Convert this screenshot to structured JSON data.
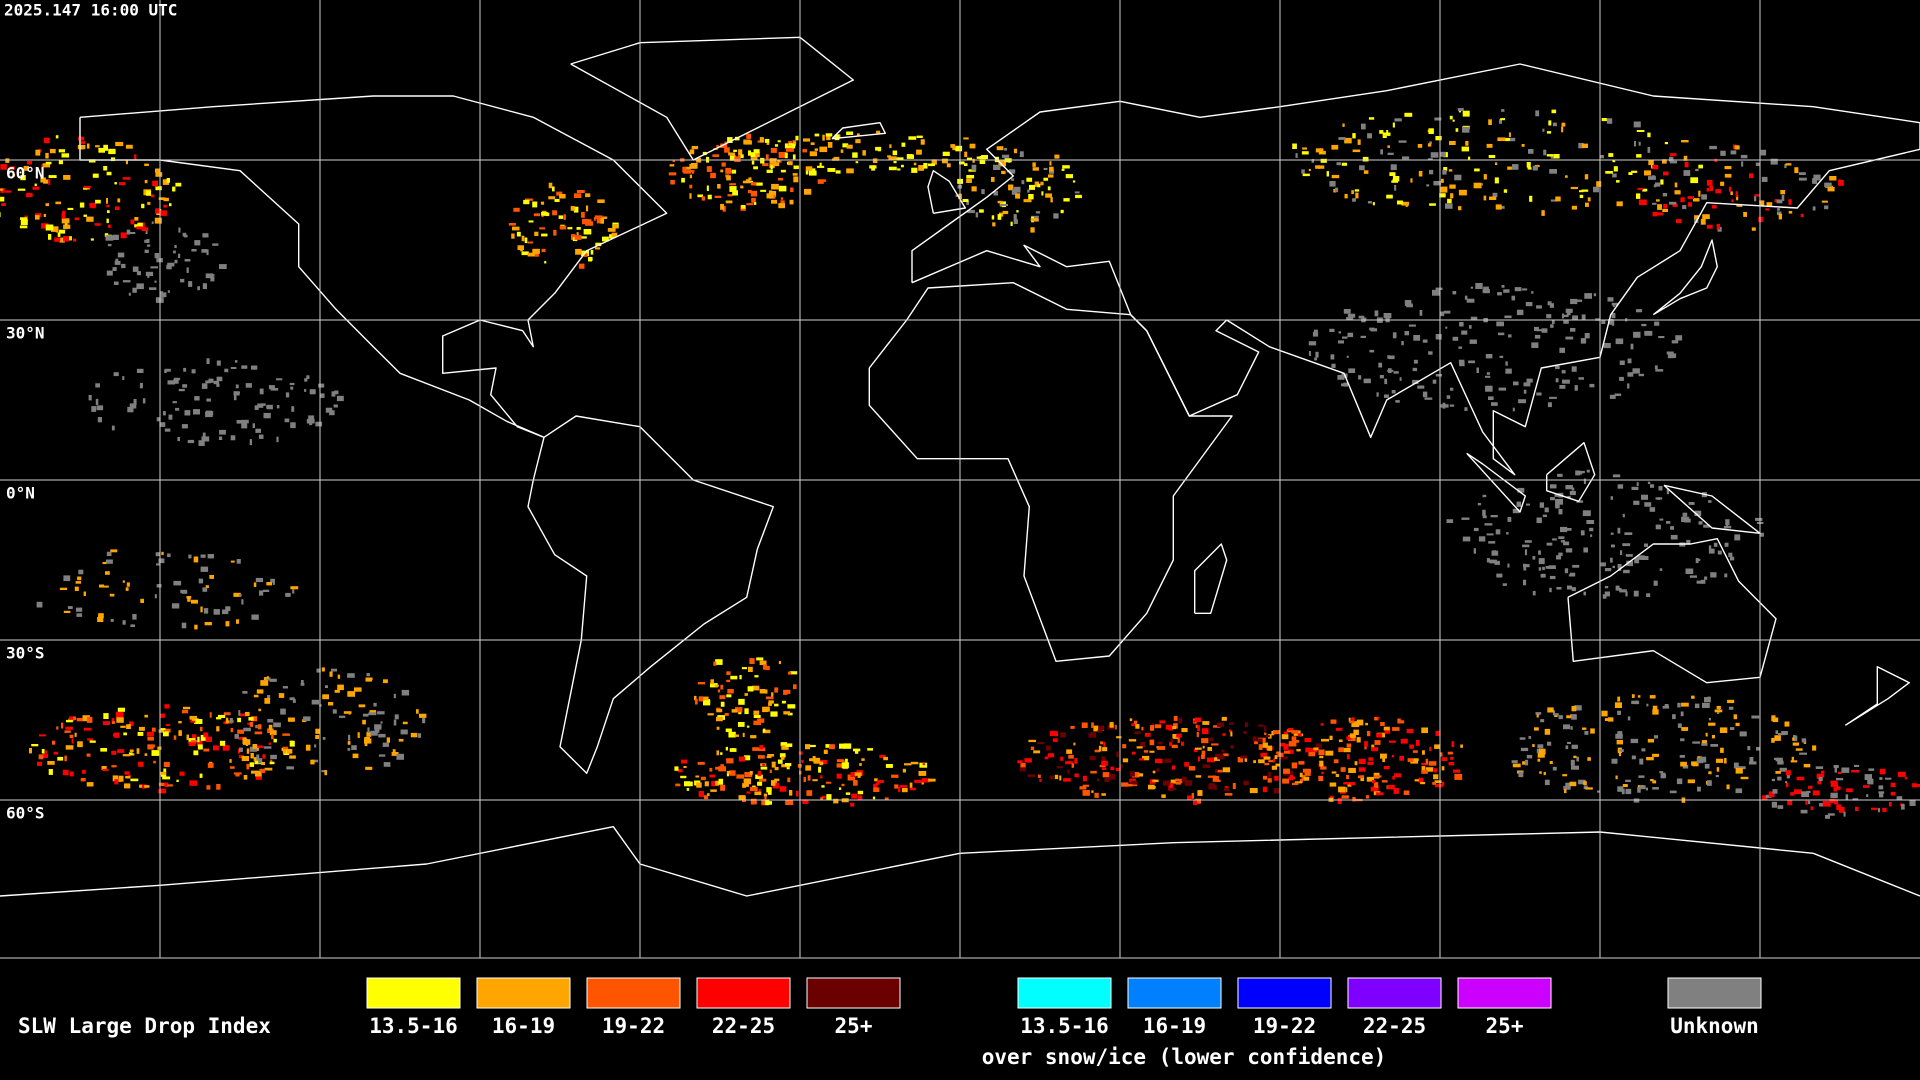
{
  "timestamp": "2025.147 16:00 UTC",
  "latitude_labels": [
    "60°N",
    "30°N",
    "0°N",
    "30°S",
    "60°S"
  ],
  "legend": {
    "title": "SLW Large Drop Index",
    "liquid": [
      {
        "label": "13.5-16",
        "color": "#ffff00"
      },
      {
        "label": "16-19",
        "color": "#ffa500"
      },
      {
        "label": "19-22",
        "color": "#ff5500"
      },
      {
        "label": "22-25",
        "color": "#ff0000"
      },
      {
        "label": "25+",
        "color": "#6b0000"
      }
    ],
    "snow_ice": [
      {
        "label": "13.5-16",
        "color": "#00ffff"
      },
      {
        "label": "16-19",
        "color": "#0080ff"
      },
      {
        "label": "19-22",
        "color": "#0000ff"
      },
      {
        "label": "22-25",
        "color": "#8000ff"
      },
      {
        "label": "25+",
        "color": "#cc00ff"
      }
    ],
    "snow_ice_note": "over snow/ice (lower confidence)",
    "unknown": {
      "label": "Unknown",
      "color": "#808080"
    }
  }
}
